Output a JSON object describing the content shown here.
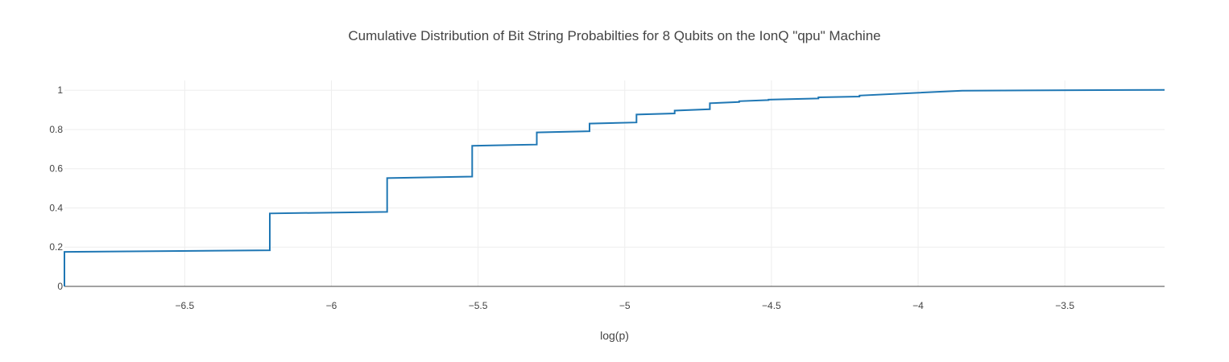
{
  "chart_data": {
    "type": "line",
    "line_shape": "step",
    "title": "Cumulative Distribution of Bit String Probabilties for 8 Qubits on the IonQ \"qpu\" Machine",
    "xlabel": "log(p)",
    "ylabel": "",
    "xlim": [
      -6.91,
      -3.16
    ],
    "ylim": [
      0,
      1.05
    ],
    "xticks": [
      -6.5,
      -6,
      -5.5,
      -5,
      -4.5,
      -4,
      -3.5
    ],
    "xtick_labels": [
      "−6.5",
      "−6",
      "−5.5",
      "−5",
      "−4.5",
      "−4",
      "−3.5"
    ],
    "yticks": [
      0,
      0.2,
      0.4,
      0.6,
      0.8,
      1
    ],
    "ytick_labels": [
      "0",
      "0.2",
      "0.4",
      "0.6",
      "0.8",
      "1"
    ],
    "grid": true,
    "line_color": "#1f77b4",
    "series": [
      {
        "x": [
          -6.91,
          -6.91,
          -6.21,
          -6.21,
          -5.81,
          -5.81,
          -5.52,
          -5.52,
          -5.3,
          -5.3,
          -5.12,
          -5.12,
          -4.96,
          -4.96,
          -4.83,
          -4.83,
          -4.71,
          -4.71,
          -4.61,
          -4.61,
          -4.51,
          -4.51,
          -4.34,
          -4.34,
          -4.2,
          -4.2,
          -3.85,
          -3.16
        ],
        "y": [
          0.0,
          0.176,
          0.184,
          0.372,
          0.38,
          0.552,
          0.56,
          0.717,
          0.723,
          0.785,
          0.791,
          0.83,
          0.836,
          0.876,
          0.882,
          0.896,
          0.903,
          0.934,
          0.94,
          0.944,
          0.95,
          0.952,
          0.958,
          0.964,
          0.968,
          0.973,
          0.998,
          1.002
        ]
      }
    ]
  }
}
